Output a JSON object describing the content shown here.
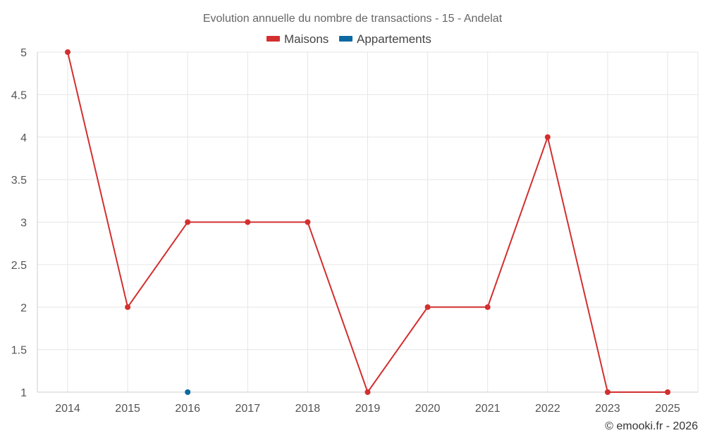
{
  "chart_data": {
    "type": "line",
    "title": "Evolution annuelle du nombre de transactions - 15 - Andelat",
    "categories": [
      "2014",
      "2015",
      "2016",
      "2017",
      "2018",
      "2019",
      "2020",
      "2021",
      "2022",
      "2023",
      "2025"
    ],
    "ylim": [
      1,
      5
    ],
    "yticks": [
      1,
      1.5,
      2,
      2.5,
      3,
      3.5,
      4,
      4.5,
      5
    ],
    "grid": true,
    "legend_position": "top-center",
    "xlabel": "",
    "ylabel": "",
    "series": [
      {
        "name": "Maisons",
        "color": "#d32f2f",
        "values": [
          5,
          2,
          3,
          3,
          3,
          1,
          2,
          2,
          4,
          1,
          1
        ]
      },
      {
        "name": "Appartements",
        "color": "#0a6aa1",
        "values": [
          null,
          null,
          1,
          null,
          null,
          null,
          null,
          null,
          null,
          null,
          null
        ]
      }
    ]
  },
  "credit": "© emooki.fr - 2026"
}
